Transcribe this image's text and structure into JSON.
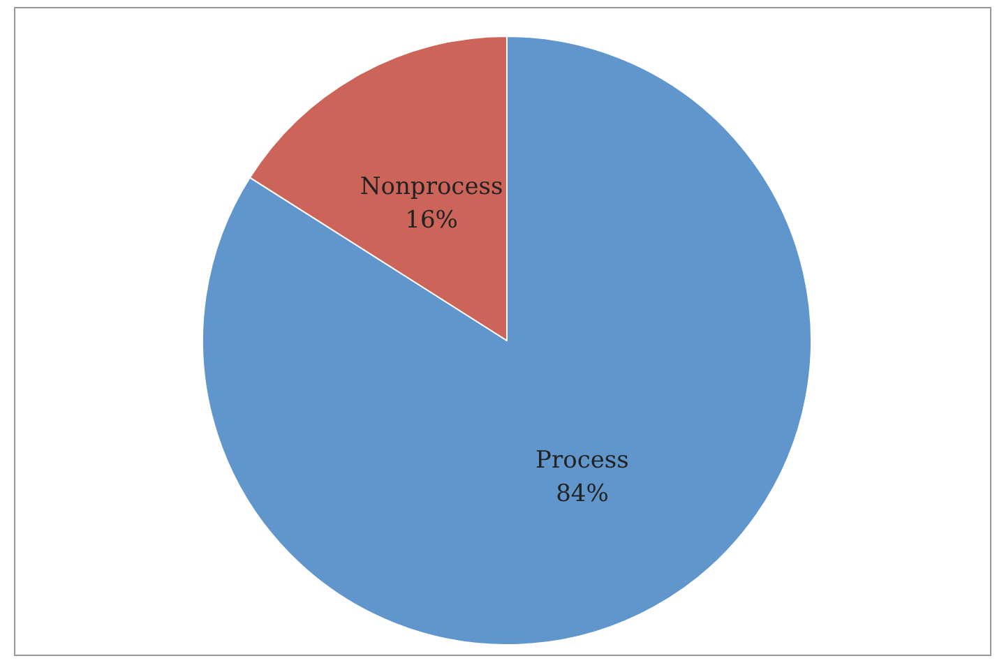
{
  "chart_data": {
    "type": "pie",
    "categories": [
      "Process",
      "Nonprocess"
    ],
    "values": [
      84,
      16
    ],
    "colors": [
      "#6096cb",
      "#cc6459"
    ],
    "value_labels": [
      "84%",
      "16%"
    ],
    "legend": false
  }
}
